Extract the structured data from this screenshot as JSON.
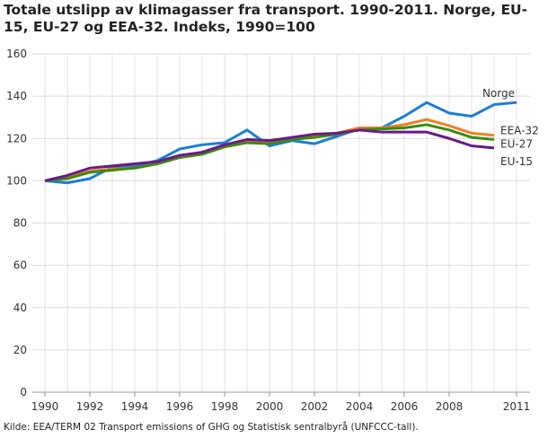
{
  "chart_data": {
    "type": "line",
    "title": "Totale utslipp av klimagasser fra transport. 1990-2011. Norge, EU-15, EU-27 og EEA-32. Indeks, 1990=100",
    "xlabel": "",
    "ylabel": "",
    "ylim": [
      0,
      160
    ],
    "yticks": [
      0,
      20,
      40,
      60,
      80,
      100,
      120,
      140,
      160
    ],
    "xlim": [
      1990,
      2011
    ],
    "xticks": [
      1990,
      1992,
      1994,
      1996,
      1998,
      2000,
      2002,
      2004,
      2006,
      2008,
      2011
    ],
    "grid": true,
    "legend": "inline labels at line ends",
    "x": [
      1990,
      1991,
      1992,
      1993,
      1994,
      1995,
      1996,
      1997,
      1998,
      1999,
      2000,
      2001,
      2002,
      2003,
      2004,
      2005,
      2006,
      2007,
      2008,
      2009,
      2010,
      2011
    ],
    "series": [
      {
        "name": "Norge",
        "color": "#1a7fd4",
        "values": [
          100,
          99,
          101,
          106.5,
          107,
          109.5,
          115,
          117,
          118,
          124,
          116.5,
          119,
          117.5,
          121,
          124.5,
          125,
          130.5,
          137,
          132,
          130.5,
          136,
          137
        ]
      },
      {
        "name": "EEA-32",
        "color": "#f07e26",
        "values": [
          100,
          101.5,
          104.5,
          105.5,
          106,
          108,
          111,
          113,
          116.5,
          118.5,
          118,
          120,
          121,
          122.5,
          125,
          125,
          126.5,
          129,
          126,
          122.5,
          121.5,
          null
        ]
      },
      {
        "name": "EU-27",
        "color": "#3d8a0f",
        "values": [
          100,
          101,
          104,
          105,
          106,
          108,
          111,
          112.5,
          116,
          118,
          117.5,
          119.5,
          120.5,
          122,
          124,
          124.5,
          125,
          126.5,
          124,
          120.5,
          119.5,
          null
        ]
      },
      {
        "name": "EU-15",
        "color": "#6a1a8a",
        "values": [
          100,
          102.5,
          106,
          107,
          108,
          109,
          112,
          113.5,
          117,
          119.5,
          119,
          120.5,
          122,
          122.5,
          124,
          123,
          123,
          123,
          120,
          116.5,
          115.5,
          null
        ]
      }
    ]
  },
  "source": "Kilde: EEA/TERM 02 Transport emissions of GHG og Statistisk sentralbyrå (UNFCCC-tall)."
}
